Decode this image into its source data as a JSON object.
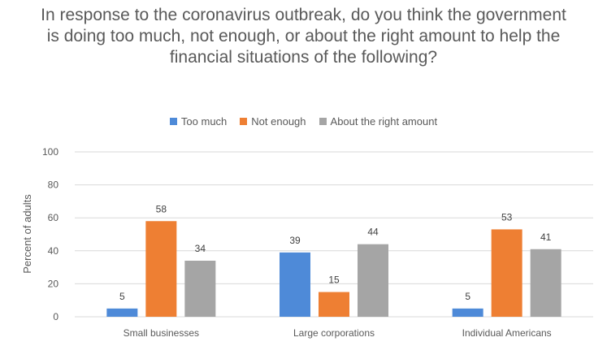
{
  "chart_data": {
    "type": "bar",
    "title": "In response to the coronavirus outbreak, do you think the government is doing too much, not enough, or about the right amount to help the financial situations of the following?",
    "categories": [
      "Small businesses",
      "Large corporations",
      "Individual Americans"
    ],
    "series": [
      {
        "name": "Too much",
        "values": [
          5,
          39,
          5
        ],
        "color": "#4e8ad8"
      },
      {
        "name": "Not enough",
        "values": [
          58,
          15,
          53
        ],
        "color": "#ee7f33"
      },
      {
        "name": "About the right amount",
        "values": [
          34,
          44,
          41
        ],
        "color": "#a5a5a5"
      }
    ],
    "xlabel": "",
    "ylabel": "Percent of adults",
    "ylim": [
      0,
      100
    ],
    "yticks": [
      0,
      20,
      40,
      60,
      80,
      100
    ],
    "grid": true,
    "legend_position": "top"
  }
}
